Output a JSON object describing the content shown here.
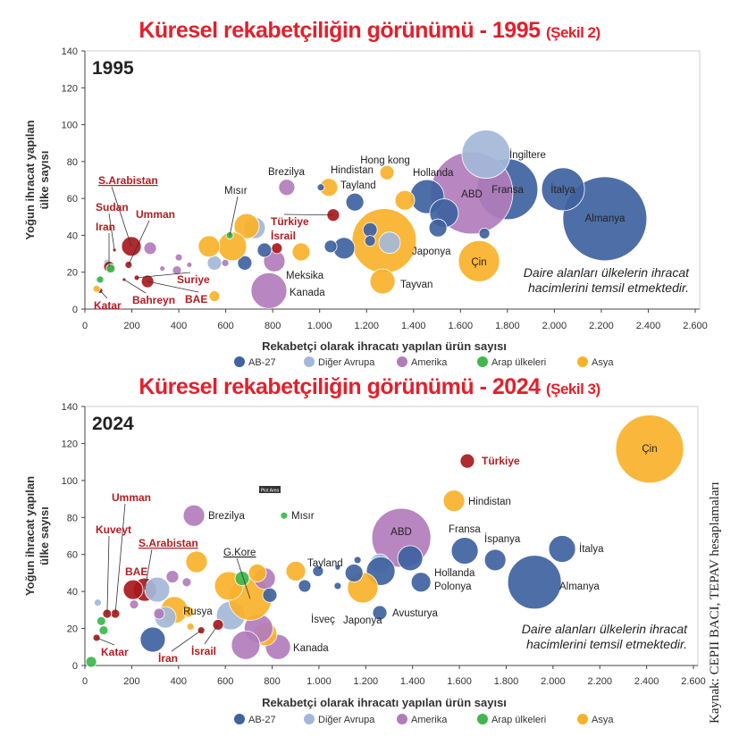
{
  "colors": {
    "AB-27": "#3f62a0",
    "Diğer Avrupa": "#a3b8d8",
    "Amerika": "#b27cbb",
    "Arap ülkeleri": "#3db84b",
    "Asya": "#f8b22a",
    "highlight": "#a8191d",
    "label_red": "#b01e22",
    "title_red": "#e3202b"
  },
  "source": "Kaynak: CEPII BACI, TEPAV hesaplamaları",
  "chart_data": [
    {
      "type": "scatter",
      "title": "Küresel rekabetçiliğin görünümü - 1995",
      "subtitle": "(Şekil 2)",
      "year_label": "1995",
      "xlabel": "Rekabetçi olarak ihracatı yapılan ürün sayısı",
      "ylabel": [
        "Yoğun ihracat yapılan",
        "ülke sayısı"
      ],
      "xlim": [
        0,
        2600
      ],
      "ylim": [
        0,
        140
      ],
      "xticks": [
        "0",
        "200",
        "400",
        "600",
        "800",
        "1.000",
        "1.200",
        "1.400",
        "1.600",
        "1.800",
        "2.000",
        "2.200",
        "2.400",
        "2.600"
      ],
      "yticks": [
        "0",
        "20",
        "40",
        "60",
        "80",
        "100",
        "120",
        "140"
      ],
      "grid": false,
      "legend_position": "bottom",
      "legend": [
        "AB-27",
        "Diğer Avrupa",
        "Amerika",
        "Arap ülkeleri",
        "Asya"
      ],
      "note": [
        "Daire alanları ülkelerin ihracat",
        "hacimlerini temsil etmektedir."
      ],
      "bubbles": [
        {
          "x": 2215,
          "y": 49,
          "size": 47,
          "group": "AB-27",
          "label": "Almanya"
        },
        {
          "x": 2037,
          "y": 65,
          "size": 24,
          "group": "AB-27",
          "label": "İtalya"
        },
        {
          "x": 1800,
          "y": 65,
          "size": 34,
          "group": "AB-27",
          "label": "Fransa"
        },
        {
          "x": 1648,
          "y": 63,
          "size": 46,
          "group": "Amerika",
          "label": "ABD"
        },
        {
          "x": 1709,
          "y": 84,
          "size": 27,
          "group": "Diğer Avrupa",
          "label": "İngiltere"
        },
        {
          "x": 1679,
          "y": 26,
          "size": 23,
          "group": "Asya",
          "label": "Çin"
        },
        {
          "x": 1275,
          "y": 37,
          "size": 36,
          "group": "Asya",
          "label": "Japonya"
        },
        {
          "x": 1298,
          "y": 36,
          "size": 12,
          "group": "Diğer Avrupa"
        },
        {
          "x": 1287,
          "y": 74,
          "size": 8,
          "group": "Asya",
          "label": "Hong kong"
        },
        {
          "x": 1458,
          "y": 61,
          "size": 19,
          "group": "AB-27",
          "label": "Hollanda"
        },
        {
          "x": 1530,
          "y": 52,
          "size": 16,
          "group": "AB-27"
        },
        {
          "x": 1504,
          "y": 44,
          "size": 10,
          "group": "AB-27"
        },
        {
          "x": 1702,
          "y": 41,
          "size": 6,
          "group": "AB-27"
        },
        {
          "x": 1268,
          "y": 15,
          "size": 14,
          "group": "Asya",
          "label": "Tayvan"
        },
        {
          "x": 1363,
          "y": 59,
          "size": 11,
          "group": "Asya",
          "label": "Hindistan"
        },
        {
          "x": 1150,
          "y": 58,
          "size": 10,
          "group": "AB-27",
          "label": "Tayland"
        },
        {
          "x": 1039,
          "y": 66,
          "size": 10,
          "group": "Asya"
        },
        {
          "x": 1104,
          "y": 33,
          "size": 12,
          "group": "AB-27"
        },
        {
          "x": 1215,
          "y": 43,
          "size": 8,
          "group": "AB-27"
        },
        {
          "x": 1215,
          "y": 37,
          "size": 6,
          "group": "AB-27"
        },
        {
          "x": 1047,
          "y": 34,
          "size": 7,
          "group": "AB-27"
        },
        {
          "x": 1005,
          "y": 66,
          "size": 4,
          "group": "AB-27"
        },
        {
          "x": 1058,
          "y": 51,
          "size": 7,
          "group": "highlight",
          "label": "Türkiye"
        },
        {
          "x": 860,
          "y": 66,
          "size": 9,
          "group": "Amerika",
          "label": "Brezilya"
        },
        {
          "x": 784,
          "y": 10,
          "size": 20,
          "group": "Amerika",
          "label": "Kanada"
        },
        {
          "x": 807,
          "y": 26,
          "size": 12,
          "group": "Amerika",
          "label": "Meksika"
        },
        {
          "x": 921,
          "y": 31,
          "size": 10,
          "group": "Asya"
        },
        {
          "x": 765,
          "y": 32,
          "size": 8,
          "group": "AB-27"
        },
        {
          "x": 681,
          "y": 25,
          "size": 8,
          "group": "AB-27"
        },
        {
          "x": 723,
          "y": 44,
          "size": 12,
          "group": "Diğer Avrupa"
        },
        {
          "x": 689,
          "y": 45,
          "size": 14,
          "group": "Asya"
        },
        {
          "x": 628,
          "y": 34,
          "size": 16,
          "group": "Asya"
        },
        {
          "x": 552,
          "y": 25,
          "size": 8,
          "group": "Diğer Avrupa"
        },
        {
          "x": 552,
          "y": 7,
          "size": 6,
          "group": "Asya"
        },
        {
          "x": 529,
          "y": 34,
          "size": 12,
          "group": "Asya"
        },
        {
          "x": 598,
          "y": 25,
          "size": 4,
          "group": "Amerika"
        },
        {
          "x": 617,
          "y": 40,
          "size": 4,
          "group": "Arap ülkeleri",
          "label": "Mısır"
        },
        {
          "x": 818,
          "y": 33,
          "size": 6,
          "group": "highlight",
          "label": "İsrail"
        },
        {
          "x": 278,
          "y": 33,
          "size": 7,
          "group": "Amerika"
        },
        {
          "x": 400,
          "y": 28,
          "size": 4,
          "group": "Amerika"
        },
        {
          "x": 392,
          "y": 21,
          "size": 5,
          "group": "Amerika"
        },
        {
          "x": 445,
          "y": 24,
          "size": 3,
          "group": "Amerika"
        },
        {
          "x": 330,
          "y": 22,
          "size": 3,
          "group": "Amerika"
        },
        {
          "x": 60,
          "y": 16,
          "size": 4,
          "group": "Diğer Avrupa"
        },
        {
          "x": 95,
          "y": 25,
          "size": 4,
          "group": "Diğer Avrupa"
        },
        {
          "x": 198,
          "y": 34,
          "size": 11,
          "group": "highlight",
          "label": "S.Arabistan"
        },
        {
          "x": 186,
          "y": 24,
          "size": 4,
          "group": "highlight",
          "label": "Umman"
        },
        {
          "x": 126,
          "y": 32,
          "size": 2,
          "group": "highlight",
          "label": "Sudan"
        },
        {
          "x": 103,
          "y": 23,
          "size": 6,
          "group": "highlight",
          "label": "Iran"
        },
        {
          "x": 110,
          "y": 22,
          "size": 5,
          "group": "Arap ülkeleri"
        },
        {
          "x": 221,
          "y": 17,
          "size": 3,
          "group": "highlight",
          "label": "Suriye"
        },
        {
          "x": 267,
          "y": 15,
          "size": 7,
          "group": "highlight",
          "label": "BAE"
        },
        {
          "x": 167,
          "y": 16,
          "size": 2,
          "group": "highlight",
          "label": "Bahreyn"
        },
        {
          "x": 65,
          "y": 10,
          "size": 3,
          "group": "highlight",
          "label": "Katar"
        },
        {
          "x": 65,
          "y": 16,
          "size": 4,
          "group": "Arap ülkeleri"
        },
        {
          "x": 50,
          "y": 11,
          "size": 4,
          "group": "Asya"
        }
      ]
    },
    {
      "type": "scatter",
      "title": "Küresel rekabetçiliğin görünümü - 2024",
      "subtitle": "(Şekil 3)",
      "year_label": "2024",
      "xlabel": "Rekabetçi olarak ihracatı yapılan ürün sayısı",
      "ylabel": [
        "Yoğun ihracat yapılan",
        "ülke sayısı"
      ],
      "xlim": [
        0,
        2600
      ],
      "ylim": [
        0,
        140
      ],
      "xticks": [
        "0",
        "200",
        "400",
        "600",
        "800",
        "1.000",
        "1.200",
        "1.400",
        "1.600",
        "1.800",
        "2.000",
        "2.200",
        "2.400",
        "2.600"
      ],
      "yticks": [
        "0",
        "20",
        "40",
        "60",
        "80",
        "100",
        "120",
        "140"
      ],
      "grid": false,
      "legend_position": "bottom",
      "legend": [
        "AB-27",
        "Diğer Avrupa",
        "Amerika",
        "Arap ülkeleri",
        "Asya"
      ],
      "note": [
        "Daire alanları ülkelerin ihracat",
        "hacimlerini temsil etmektedir."
      ],
      "tooltip": "Plot Area",
      "bubbles": [
        {
          "x": 2413,
          "y": 117,
          "size": 38,
          "group": "Asya",
          "label": "Çin"
        },
        {
          "x": 1634,
          "y": 110.5,
          "size": 8,
          "group": "highlight",
          "label": "Türkiye"
        },
        {
          "x": 1577,
          "y": 89,
          "size": 12,
          "group": "Asya",
          "label": "Hindistan"
        },
        {
          "x": 1352,
          "y": 69,
          "size": 33,
          "group": "Amerika",
          "label": "ABD"
        },
        {
          "x": 1623,
          "y": 62,
          "size": 15,
          "group": "AB-27",
          "label": "Fransa"
        },
        {
          "x": 1753,
          "y": 57,
          "size": 12,
          "group": "AB-27",
          "label": "İspanya"
        },
        {
          "x": 2039,
          "y": 63,
          "size": 15,
          "group": "AB-27",
          "label": "İtalya"
        },
        {
          "x": 1921,
          "y": 45,
          "size": 30,
          "group": "AB-27",
          "label": "Almanya"
        },
        {
          "x": 1390,
          "y": 58,
          "size": 14,
          "group": "AB-27",
          "label": "Hollanda"
        },
        {
          "x": 1436,
          "y": 45,
          "size": 11,
          "group": "AB-27",
          "label": "Polonya"
        },
        {
          "x": 1260,
          "y": 55,
          "size": 11,
          "group": "Diğer Avrupa"
        },
        {
          "x": 1264,
          "y": 51,
          "size": 16,
          "group": "AB-27"
        },
        {
          "x": 1260,
          "y": 28.5,
          "size": 8,
          "group": "AB-27",
          "label": "Avusturya"
        },
        {
          "x": 1187,
          "y": 42,
          "size": 17,
          "group": "Asya",
          "label": "Japonya"
        },
        {
          "x": 1150,
          "y": 50,
          "size": 10,
          "group": "AB-27"
        },
        {
          "x": 1165,
          "y": 57,
          "size": 4,
          "group": "AB-27"
        },
        {
          "x": 901,
          "y": 51,
          "size": 11,
          "group": "Asya",
          "label": "Tayland"
        },
        {
          "x": 939,
          "y": 43,
          "size": 7,
          "group": "AB-27",
          "label": "İsveç"
        },
        {
          "x": 996,
          "y": 51,
          "size": 6,
          "group": "AB-27"
        },
        {
          "x": 1080,
          "y": 43,
          "size": 4,
          "group": "AB-27"
        },
        {
          "x": 1080,
          "y": 53,
          "size": 3,
          "group": "AB-27"
        },
        {
          "x": 851,
          "y": 81,
          "size": 4,
          "group": "Arap ülkeleri",
          "label": "Mısır"
        },
        {
          "x": 466,
          "y": 81,
          "size": 12,
          "group": "Amerika",
          "label": "Brezilya"
        },
        {
          "x": 825,
          "y": 10,
          "size": 14,
          "group": "Amerika",
          "label": "Kanada"
        },
        {
          "x": 771,
          "y": 17,
          "size": 13,
          "group": "Asya"
        },
        {
          "x": 623,
          "y": 27,
          "size": 16,
          "group": "Diğer Avrupa"
        },
        {
          "x": 742,
          "y": 20,
          "size": 16,
          "group": "Amerika"
        },
        {
          "x": 687,
          "y": 11,
          "size": 16,
          "group": "Amerika"
        },
        {
          "x": 706,
          "y": 36,
          "size": 24,
          "group": "Asya",
          "label": "G.Kore"
        },
        {
          "x": 768,
          "y": 47,
          "size": 12,
          "group": "Amerika"
        },
        {
          "x": 790,
          "y": 38,
          "size": 8,
          "group": "AB-27"
        },
        {
          "x": 737,
          "y": 50,
          "size": 10,
          "group": "Asya"
        },
        {
          "x": 477,
          "y": 56,
          "size": 12,
          "group": "Asya"
        },
        {
          "x": 615,
          "y": 43,
          "size": 16,
          "group": "Asya"
        },
        {
          "x": 672,
          "y": 47,
          "size": 8,
          "group": "Arap ülkeleri"
        },
        {
          "x": 256,
          "y": 41,
          "size": 13,
          "group": "highlight",
          "label": "S.Arabistan"
        },
        {
          "x": 206,
          "y": 41,
          "size": 11,
          "group": "highlight",
          "label": "BAE"
        },
        {
          "x": 309,
          "y": 41,
          "size": 14,
          "group": "Diğer Avrupa"
        },
        {
          "x": 130,
          "y": 28,
          "size": 5,
          "group": "highlight",
          "label": "Umman"
        },
        {
          "x": 95,
          "y": 28,
          "size": 5,
          "group": "highlight",
          "label": "Kuveyt"
        },
        {
          "x": 50,
          "y": 15,
          "size": 4,
          "group": "highlight",
          "label": "Katar"
        },
        {
          "x": 290,
          "y": 14,
          "size": 14,
          "group": "AB-27"
        },
        {
          "x": 382,
          "y": 30,
          "size": 15,
          "group": "Asya",
          "label": "Rusya"
        },
        {
          "x": 344,
          "y": 26,
          "size": 12,
          "group": "Diğer Avrupa"
        },
        {
          "x": 317,
          "y": 28,
          "size": 6,
          "group": "Amerika"
        },
        {
          "x": 497,
          "y": 19,
          "size": 4,
          "group": "highlight",
          "label": "İran"
        },
        {
          "x": 569,
          "y": 22,
          "size": 6,
          "group": "highlight",
          "label": "İsrail"
        },
        {
          "x": 443,
          "y": 29,
          "size": 6,
          "group": "Asya"
        },
        {
          "x": 451,
          "y": 21,
          "size": 4,
          "group": "Asya"
        },
        {
          "x": 374,
          "y": 48,
          "size": 7,
          "group": "Amerika"
        },
        {
          "x": 435,
          "y": 45,
          "size": 5,
          "group": "Amerika"
        },
        {
          "x": 210,
          "y": 33,
          "size": 5,
          "group": "Amerika"
        },
        {
          "x": 27,
          "y": 2,
          "size": 6,
          "group": "Arap ülkeleri"
        },
        {
          "x": 80,
          "y": 19,
          "size": 5,
          "group": "Arap ülkeleri"
        },
        {
          "x": 70,
          "y": 24,
          "size": 5,
          "group": "Arap ülkeleri"
        },
        {
          "x": 55,
          "y": 34,
          "size": 4,
          "group": "Diğer Avrupa"
        }
      ]
    }
  ]
}
